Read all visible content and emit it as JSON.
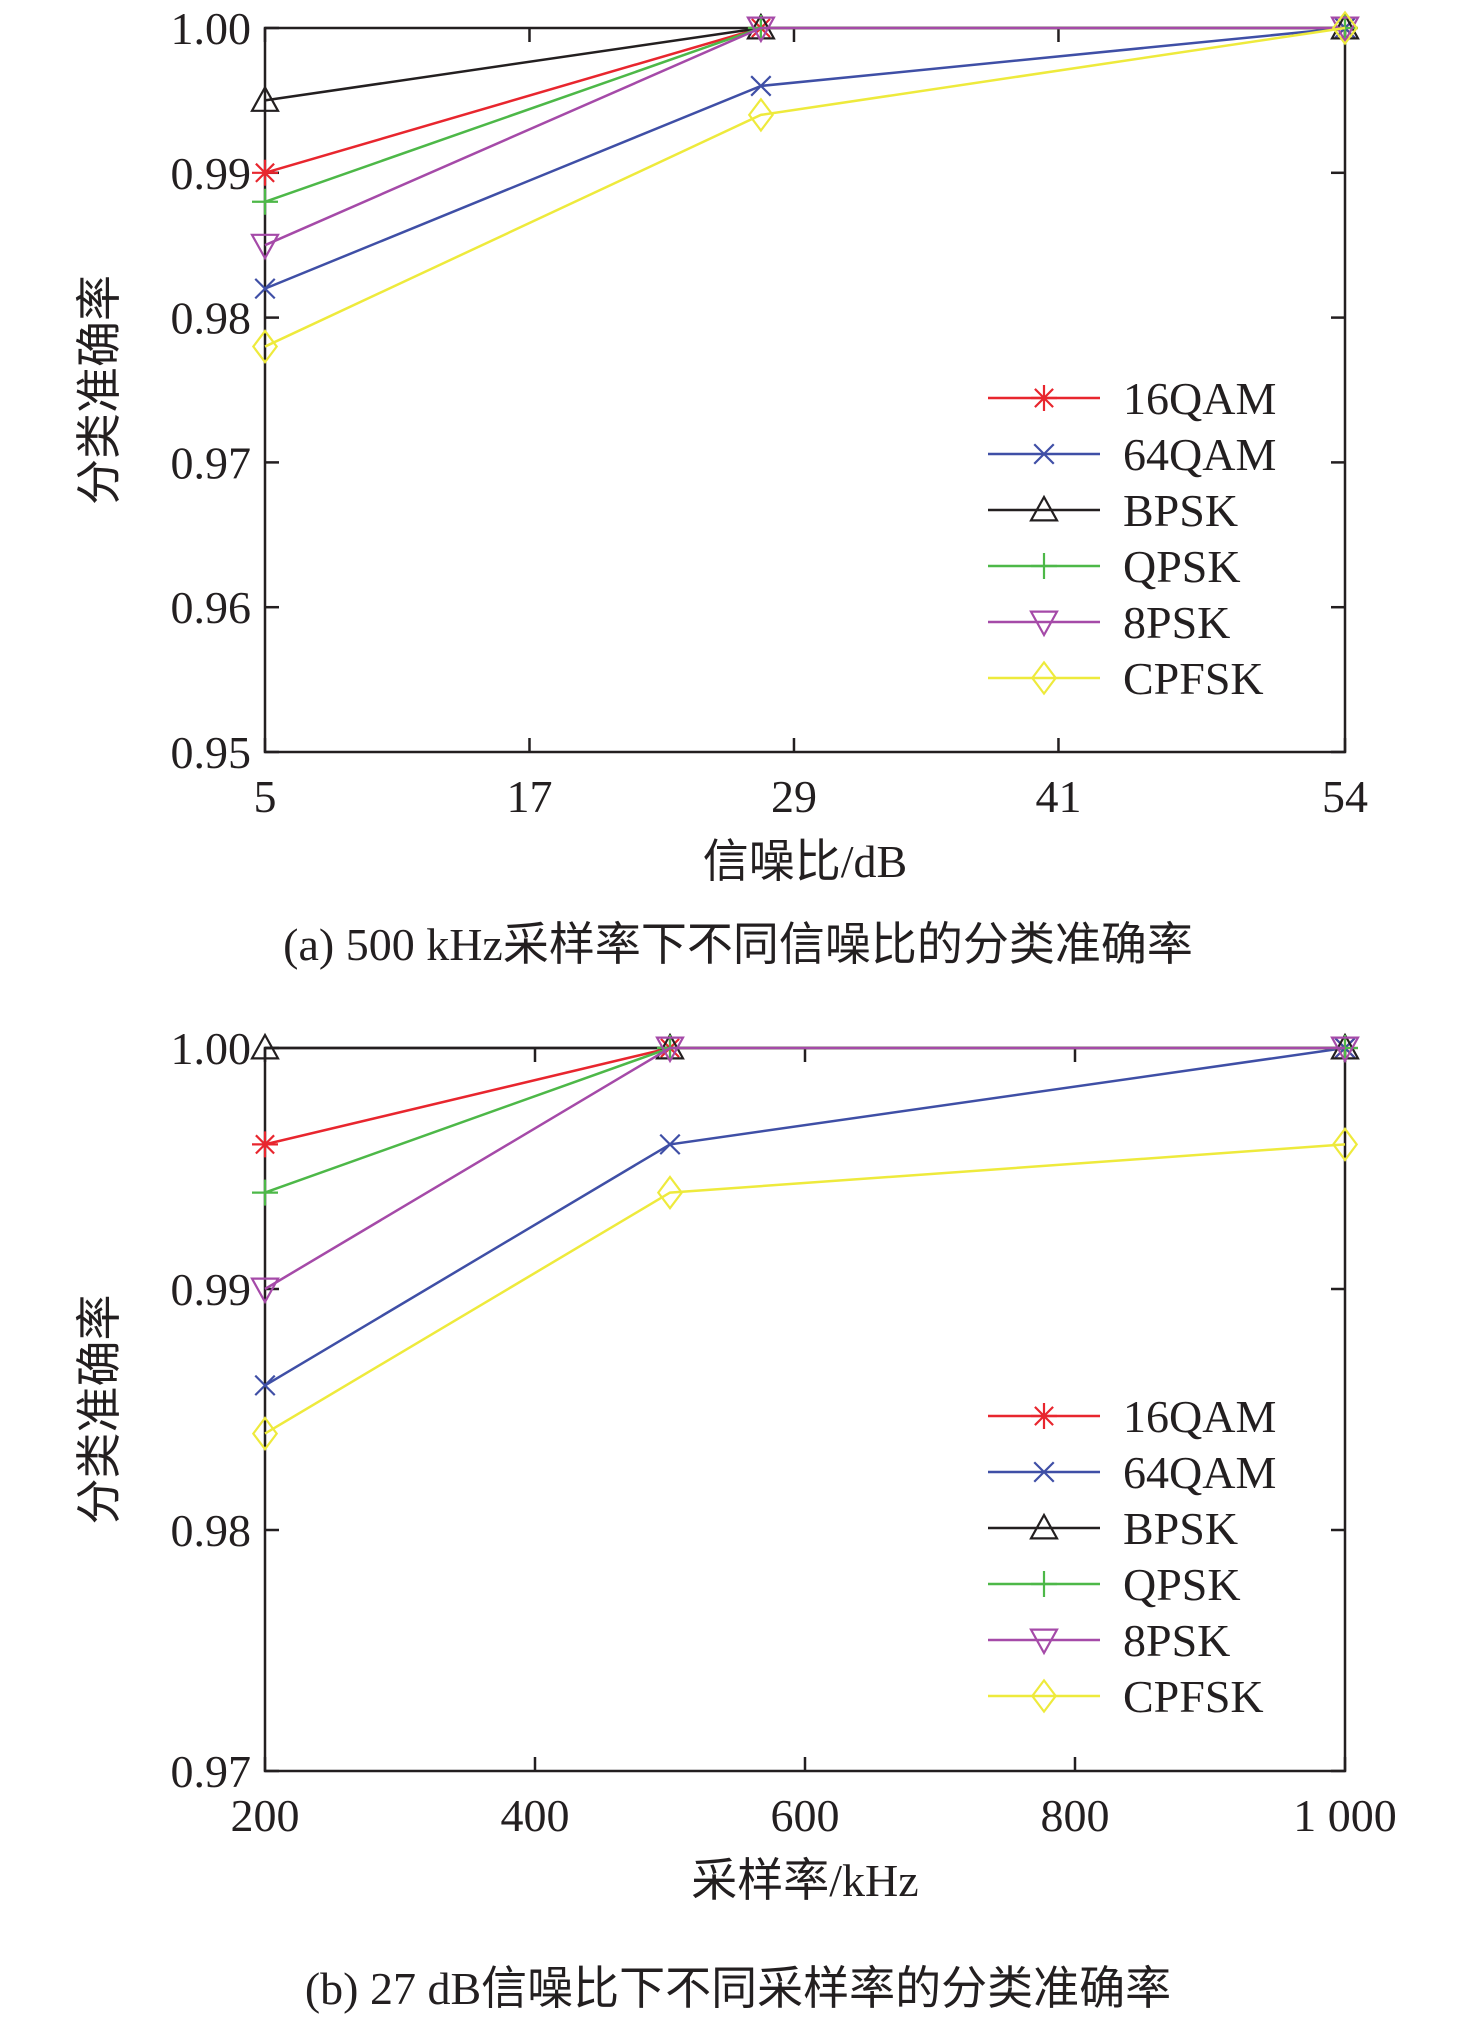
{
  "figures": [
    {
      "caption": "(a) 500 kHz采样率下不同信噪比的分类准确率",
      "chart_data": {
        "type": "line",
        "title": "",
        "xlabel": "信噪比/dB",
        "ylabel": "分类准确率",
        "x_ticks": [
          "5",
          "17",
          "29",
          "41",
          "54"
        ],
        "x_tick_values": [
          5,
          17,
          29,
          41,
          54
        ],
        "y_ticks": [
          "0.95",
          "0.96",
          "0.97",
          "0.98",
          "0.99",
          "1.00"
        ],
        "y_tick_values": [
          0.95,
          0.96,
          0.97,
          0.98,
          0.99,
          1.0
        ],
        "xlim": [
          5,
          54
        ],
        "ylim": [
          0.95,
          1.0
        ],
        "x": [
          5,
          27.5,
          54
        ],
        "legend_position": "lower-right",
        "grid": false,
        "series": [
          {
            "name": "16QAM",
            "color": "#e8262e",
            "marker": "star",
            "values": [
              0.99,
              1.0,
              1.0
            ]
          },
          {
            "name": "64QAM",
            "color": "#3f4fa6",
            "marker": "x",
            "values": [
              0.982,
              0.996,
              1.0
            ]
          },
          {
            "name": "BPSK",
            "color": "#231f20",
            "marker": "triangle-up",
            "values": [
              0.995,
              1.0,
              1.0
            ]
          },
          {
            "name": "QPSK",
            "color": "#4db848",
            "marker": "plus",
            "values": [
              0.988,
              1.0,
              1.0
            ]
          },
          {
            "name": "8PSK",
            "color": "#a54aa8",
            "marker": "triangle-down",
            "values": [
              0.985,
              1.0,
              1.0
            ]
          },
          {
            "name": "CPFSK",
            "color": "#eeea3c",
            "marker": "diamond",
            "values": [
              0.978,
              0.994,
              1.0
            ]
          }
        ]
      }
    },
    {
      "caption": "(b) 27 dB信噪比下不同采样率的分类准确率",
      "chart_data": {
        "type": "line",
        "title": "",
        "xlabel": "采样率/kHz",
        "ylabel": "分类准确率",
        "x_ticks": [
          "200",
          "400",
          "600",
          "800",
          "1 000"
        ],
        "x_tick_values": [
          200,
          400,
          600,
          800,
          1000
        ],
        "y_ticks": [
          "0.97",
          "0.98",
          "0.99",
          "1.00"
        ],
        "y_tick_values": [
          0.97,
          0.98,
          0.99,
          1.0
        ],
        "xlim": [
          200,
          1000
        ],
        "ylim": [
          0.97,
          1.0
        ],
        "x": [
          200,
          500,
          1000
        ],
        "legend_position": "lower-right",
        "grid": false,
        "series": [
          {
            "name": "16QAM",
            "color": "#e8262e",
            "marker": "star",
            "values": [
              0.996,
              1.0,
              1.0
            ]
          },
          {
            "name": "64QAM",
            "color": "#3f4fa6",
            "marker": "x",
            "values": [
              0.986,
              0.996,
              1.0
            ]
          },
          {
            "name": "BPSK",
            "color": "#231f20",
            "marker": "triangle-up",
            "values": [
              1.0,
              1.0,
              1.0
            ]
          },
          {
            "name": "QPSK",
            "color": "#4db848",
            "marker": "plus",
            "values": [
              0.994,
              1.0,
              1.0
            ]
          },
          {
            "name": "8PSK",
            "color": "#a54aa8",
            "marker": "triangle-down",
            "values": [
              0.99,
              1.0,
              1.0
            ]
          },
          {
            "name": "CPFSK",
            "color": "#eeea3c",
            "marker": "diamond",
            "values": [
              0.984,
              0.994,
              0.996
            ]
          }
        ]
      }
    }
  ]
}
